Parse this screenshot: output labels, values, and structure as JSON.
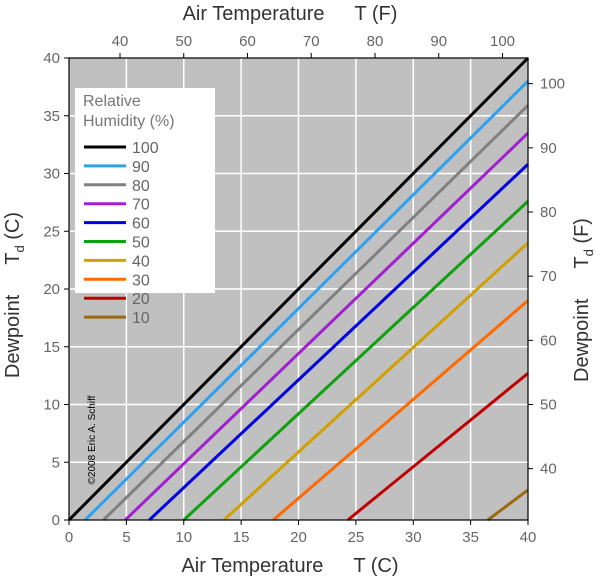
{
  "chart_data": {
    "type": "line",
    "x_label_bottom": {
      "name": "Air Temperature",
      "symbol": "T",
      "unit": "(C)"
    },
    "x_label_top": {
      "name": "Air Temperature",
      "symbol": "T",
      "unit": "(F)"
    },
    "y_label_left": {
      "name": "Dewpoint",
      "symbol": "T",
      "subscript": "d",
      "unit": "(C)"
    },
    "y_label_right": {
      "name": "Dewpoint",
      "symbol": "T",
      "subscript": "d",
      "unit": "(F)"
    },
    "xlim_c": [
      0,
      40
    ],
    "ylim_c": [
      0,
      40
    ],
    "x_ticks_c": [
      0,
      5,
      10,
      15,
      20,
      25,
      30,
      35,
      40
    ],
    "y_ticks_c": [
      0,
      5,
      10,
      15,
      20,
      25,
      30,
      35,
      40
    ],
    "x_ticks_f": [
      40,
      50,
      60,
      70,
      80,
      90,
      100
    ],
    "y_ticks_f": [
      40,
      50,
      60,
      70,
      80,
      90,
      100
    ],
    "grid": true,
    "background": "#c0c0c0",
    "legend": {
      "title_line1": "Relative",
      "title_line2": "Humidity (%)",
      "placement": "top-left"
    },
    "copyright": "©2008 Eric A. Schiff",
    "series": [
      {
        "name": "100",
        "rh": 100,
        "color": "#000000",
        "points": [
          [
            0,
            0
          ],
          [
            40,
            40
          ]
        ]
      },
      {
        "name": "90",
        "rh": 90,
        "color": "#2ea0f0",
        "points": [
          [
            1.4,
            0
          ],
          [
            40,
            38.0
          ]
        ]
      },
      {
        "name": "80",
        "rh": 80,
        "color": "#808080",
        "points": [
          [
            3.0,
            0
          ],
          [
            40,
            35.9
          ]
        ]
      },
      {
        "name": "70",
        "rh": 70,
        "color": "#a020d0",
        "points": [
          [
            4.9,
            0
          ],
          [
            40,
            33.5
          ]
        ]
      },
      {
        "name": "60",
        "rh": 60,
        "color": "#0000e0",
        "points": [
          [
            7.0,
            0
          ],
          [
            40,
            30.8
          ]
        ]
      },
      {
        "name": "50",
        "rh": 50,
        "color": "#10a010",
        "points": [
          [
            10.0,
            0
          ],
          [
            40,
            27.6
          ]
        ]
      },
      {
        "name": "40",
        "rh": 40,
        "color": "#d0a000",
        "points": [
          [
            13.5,
            0
          ],
          [
            40,
            24.0
          ]
        ]
      },
      {
        "name": "30",
        "rh": 30,
        "color": "#ff6a00",
        "points": [
          [
            17.8,
            0
          ],
          [
            40,
            19.0
          ]
        ]
      },
      {
        "name": "20",
        "rh": 20,
        "color": "#c00000",
        "points": [
          [
            24.3,
            0
          ],
          [
            40,
            12.7
          ]
        ]
      },
      {
        "name": "10",
        "rh": 10,
        "color": "#9a6a10",
        "points": [
          [
            36.5,
            0
          ],
          [
            40,
            2.6
          ]
        ]
      }
    ]
  }
}
